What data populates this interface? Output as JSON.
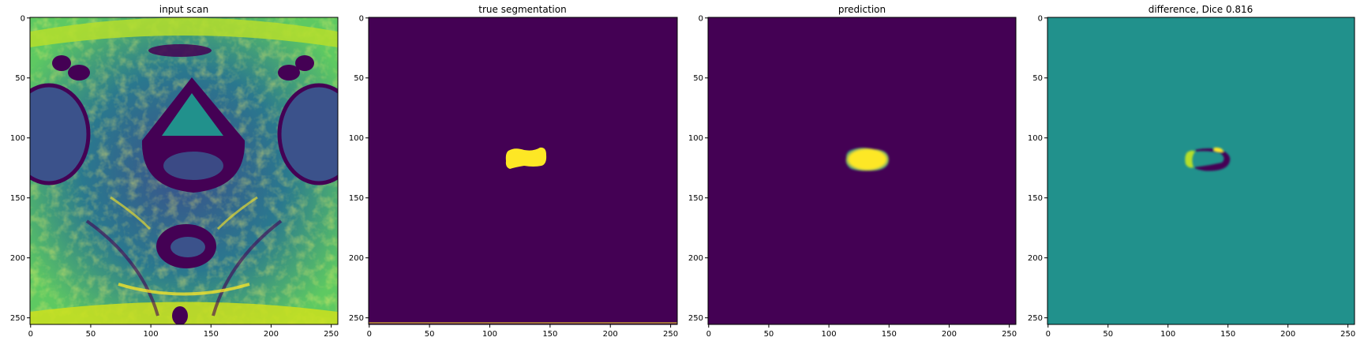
{
  "chart_data": [
    {
      "type": "heatmap",
      "title": "input scan",
      "content": "MRI pelvic axial scan",
      "xlim": [
        0,
        255
      ],
      "ylim": [
        255,
        0
      ],
      "xticks": [
        0,
        50,
        100,
        150,
        200,
        250
      ],
      "yticks": [
        0,
        50,
        100,
        150,
        200,
        250
      ],
      "colormap": "viridis"
    },
    {
      "type": "heatmap",
      "title": "true segmentation",
      "content": "binary mask",
      "xlim": [
        0,
        255
      ],
      "ylim": [
        255,
        0
      ],
      "xticks": [
        0,
        50,
        100,
        150,
        200,
        250
      ],
      "yticks": [
        0,
        50,
        100,
        150,
        200,
        250
      ],
      "colormap": "viridis",
      "mask_region": {
        "x_range": [
          115,
          148
        ],
        "y_range": [
          110,
          126
        ]
      }
    },
    {
      "type": "heatmap",
      "title": "prediction",
      "content": "predicted mask",
      "xlim": [
        0,
        255
      ],
      "ylim": [
        255,
        0
      ],
      "xticks": [
        0,
        50,
        100,
        150,
        200,
        250
      ],
      "yticks": [
        0,
        50,
        100,
        150,
        200,
        250
      ],
      "colormap": "viridis",
      "mask_region": {
        "x_range": [
          117,
          150
        ],
        "y_range": [
          110,
          128
        ]
      }
    },
    {
      "type": "heatmap",
      "title": "difference, Dice 0.816",
      "content": "difference map",
      "dice": 0.816,
      "xlim": [
        0,
        255
      ],
      "ylim": [
        255,
        0
      ],
      "xticks": [
        0,
        50,
        100,
        150,
        200,
        250
      ],
      "yticks": [
        0,
        50,
        100,
        150,
        200,
        250
      ],
      "colormap": "viridis"
    }
  ],
  "colors": {
    "viridis_low": "#440154",
    "viridis_mid": "#21918c",
    "viridis_high": "#fde725",
    "viridis_q1": "#3b528b",
    "viridis_q3": "#5ec962",
    "axis": "#000000"
  }
}
